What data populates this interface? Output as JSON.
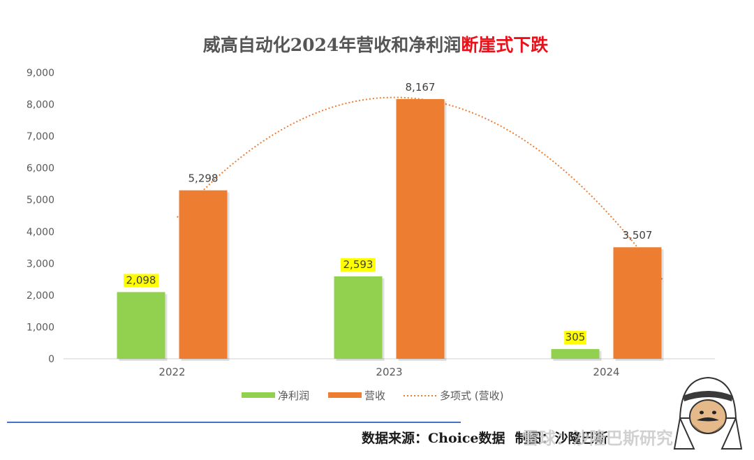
{
  "chart_data": {
    "type": "bar",
    "title": "威高自动化2024年营收和净利润",
    "title_accent": "断崖式下跌",
    "categories": [
      "2022",
      "2023",
      "2024"
    ],
    "series": [
      {
        "name": "净利润",
        "values": [
          2098,
          2593,
          305
        ],
        "labels": [
          "2,098",
          "2,593",
          "305"
        ],
        "color": "#92d050",
        "label_highlight": "#ffff00"
      },
      {
        "name": "营收",
        "values": [
          5298,
          8167,
          3507
        ],
        "labels": [
          "5,298",
          "8,167",
          "3,507"
        ],
        "color": "#ed7d31"
      }
    ],
    "trendline": {
      "name": "多项式 (营收)",
      "type": "polynomial",
      "of_series": "营收",
      "color": "#ed7d31"
    },
    "ylim": [
      0,
      9000
    ],
    "yticks": [
      0,
      1000,
      2000,
      3000,
      4000,
      5000,
      6000,
      7000,
      8000,
      9000
    ],
    "ytick_labels": [
      "0",
      "1,000",
      "2,000",
      "3,000",
      "4,000",
      "5,000",
      "6,000",
      "7,000",
      "8,000",
      "9,000"
    ],
    "grid": false,
    "legend_position": "bottom"
  },
  "footer": {
    "source_label": "数据来源：",
    "source_value": "Choice数据",
    "author": "制图：沙隆巴斯",
    "watermark": "雪球：沙隆巴斯研究"
  },
  "colors": {
    "footer_line": "#4472c4"
  }
}
